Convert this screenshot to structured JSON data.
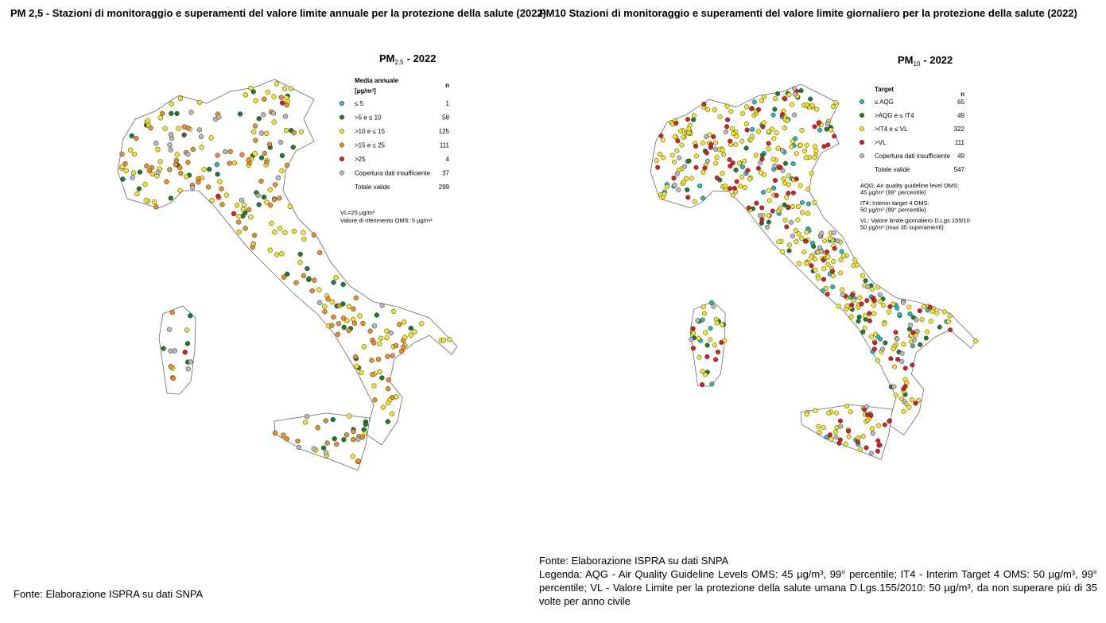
{
  "left": {
    "heading": "PM 2,5 - Stazioni di monitoraggio e superamenti del valore limite annuale per la protezione della salute (2022)",
    "map": {
      "title": {
        "base": "PM",
        "sub": "2.5",
        "suffix": "- 2022"
      },
      "legend": {
        "header": "Media annuale",
        "unit": "[µg/m³]",
        "count_header": "n",
        "items": [
          {
            "label": "≤ 5",
            "n": 1,
            "color": "#2fb7b3"
          },
          {
            "label": ">5 e ≤ 10",
            "n": 58,
            "color": "#1e7b2c"
          },
          {
            "label": ">10 e ≤ 15",
            "n": 125,
            "color": "#f3e62a"
          },
          {
            "label": ">15 e ≤ 25",
            "n": 111,
            "color": "#e8902c"
          },
          {
            "label": ">25",
            "n": 4,
            "color": "#d42020"
          },
          {
            "label": "Copertura dati insufficiente",
            "n": 37,
            "color": "#b8b8b8"
          }
        ],
        "total": {
          "label": "Totale valide",
          "n": 299
        }
      },
      "notes": [
        "VL=25 µg/m³",
        "Valore di riferimento OMS: 5 µg/m³"
      ]
    },
    "source": "Fonte: Elaborazione ISPRA su dati SNPA"
  },
  "right": {
    "heading": "PM10 Stazioni di monitoraggio e superamenti del valore limite giornaliero per la protezione della salute (2022)",
    "map": {
      "title": {
        "base": "PM",
        "sub": "10",
        "suffix": "- 2022"
      },
      "legend": {
        "header": "Target",
        "count_header": "n",
        "items": [
          {
            "label": "≤ AQG",
            "n": 65,
            "color": "#2fb7b3"
          },
          {
            "label": ">AQG e ≤ IT4",
            "n": 49,
            "color": "#1e7b2c"
          },
          {
            "label": ">IT4 e ≤ VL",
            "n": 322,
            "color": "#f3e62a"
          },
          {
            "label": ">VL",
            "n": 111,
            "color": "#d42020"
          },
          {
            "label": "Copertura dati insufficiente",
            "n": 49,
            "color": "#b8b8b8"
          }
        ],
        "total": {
          "label": "Totale valide",
          "n": 547
        }
      },
      "notes": [
        "AQG: Air quality guideline level OMS:",
        "45 µg/m³ (99° percentile)",
        "IT4: Interim target 4 OMS:",
        "50 µg/m³ (99° percentile)",
        "VL: Valore limite giornaliero D.Lgs 155/10",
        "50 µg/m³ (max 35 superamenti)"
      ]
    },
    "source": "Fonte: Elaborazione ISPRA su dati SNPA",
    "caption": "Legenda: AQG - Air Quality Guideline Levels OMS: 45 µg/m³, 99° percentile; IT4 - Interim Target 4 OMS: 50 µg/m³, 99° percentile; VL - Valore Limite per la protezione della salute umana D.Lgs.155/2010: 50 µg/m³, da non superare più di 35 volte per anno civile"
  }
}
